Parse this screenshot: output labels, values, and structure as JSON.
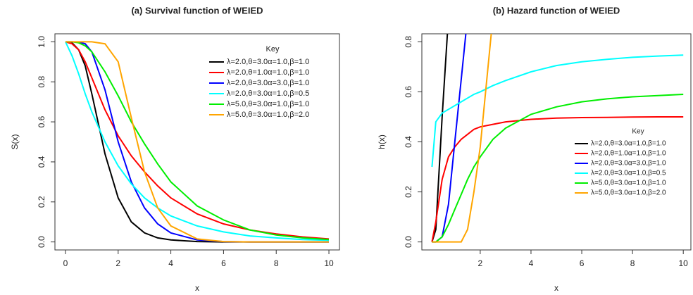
{
  "chart_data": [
    {
      "type": "line",
      "title": "(a) Survival function of WEIED",
      "x_label": "x",
      "y_label": "S(x)",
      "x": [
        0,
        0.25,
        0.5,
        0.75,
        1,
        1.5,
        2,
        2.5,
        3,
        3.5,
        4,
        5,
        6,
        7,
        8,
        9,
        10
      ],
      "xlim": [
        -0.4,
        10.4
      ],
      "xticks": [
        0,
        2,
        4,
        6,
        8,
        10
      ],
      "ylim": [
        -0.04,
        1.04
      ],
      "yticks": [
        {
          "value": 0,
          "label": "0.0"
        },
        {
          "value": 0.2,
          "label": "0.2"
        },
        {
          "value": 0.4,
          "label": "0.4"
        },
        {
          "value": 0.6,
          "label": "0.6"
        },
        {
          "value": 0.8,
          "label": "0.8"
        },
        {
          "value": 1,
          "label": "1.0"
        }
      ],
      "legend_title": "Key",
      "legend_position": "topright",
      "series": [
        {
          "name": "λ=2.0,θ=3.0α=1.0,β=1.0",
          "color": "#000000",
          "values": [
            1,
            0.995,
            0.96,
            0.88,
            0.74,
            0.44,
            0.22,
            0.1,
            0.045,
            0.02,
            0.01,
            0.002,
            0,
            0,
            0,
            0,
            0
          ]
        },
        {
          "name": "λ=2.0,θ=1.0α=1.0,β=1.0",
          "color": "#ff0000",
          "values": [
            1,
            0.99,
            0.96,
            0.9,
            0.82,
            0.66,
            0.53,
            0.43,
            0.35,
            0.28,
            0.22,
            0.14,
            0.09,
            0.06,
            0.04,
            0.025,
            0.015
          ]
        },
        {
          "name": "λ=2.0,θ=3.0α=3.0,β=1.0",
          "color": "#0000ff",
          "values": [
            1,
            1,
            0.998,
            0.99,
            0.95,
            0.76,
            0.5,
            0.3,
            0.17,
            0.09,
            0.045,
            0.01,
            0.002,
            0,
            0,
            0,
            0
          ]
        },
        {
          "name": "λ=2.0,θ=3.0α=1.0,β=0.5",
          "color": "#00ffff",
          "values": [
            1,
            0.93,
            0.84,
            0.74,
            0.65,
            0.5,
            0.38,
            0.29,
            0.22,
            0.17,
            0.13,
            0.08,
            0.05,
            0.03,
            0.02,
            0.012,
            0.008
          ]
        },
        {
          "name": "λ=5.0,θ=3.0α=1.0,β=1.0",
          "color": "#00ee00",
          "values": [
            1,
            1,
            0.995,
            0.98,
            0.95,
            0.85,
            0.73,
            0.6,
            0.49,
            0.39,
            0.3,
            0.18,
            0.11,
            0.06,
            0.035,
            0.02,
            0.012
          ]
        },
        {
          "name": "λ=5.0,θ=3.0α=1.0,β=2.0",
          "color": "#ffa500",
          "values": [
            1,
            1,
            1,
            1,
            1,
            0.99,
            0.9,
            0.62,
            0.35,
            0.17,
            0.08,
            0.015,
            0.002,
            0,
            0,
            0,
            0
          ]
        }
      ]
    },
    {
      "type": "line",
      "title": "(b) Hazard function of WEIED",
      "x_label": "x",
      "y_label": "h(x)",
      "x": [
        0.1,
        0.25,
        0.5,
        0.75,
        1,
        1.25,
        1.5,
        1.75,
        2,
        2.5,
        3,
        4,
        5,
        6,
        7,
        8,
        9,
        10
      ],
      "xlim": [
        -0.3,
        10.3
      ],
      "xticks": [
        2,
        4,
        6,
        8,
        10
      ],
      "ylim": [
        -0.032,
        0.832
      ],
      "yticks": [
        {
          "value": 0,
          "label": "0.0"
        },
        {
          "value": 0.2,
          "label": "0.2"
        },
        {
          "value": 0.4,
          "label": "0.4"
        },
        {
          "value": 0.6,
          "label": "0.6"
        },
        {
          "value": 0.8,
          "label": "0.8"
        }
      ],
      "legend_title": "Key",
      "legend_position": "right",
      "series": [
        {
          "name": "λ=2.0,θ=3.0α=1.0,β=1.0",
          "color": "#000000",
          "values": [
            0,
            0.05,
            0.5,
            0.9,
            null,
            null,
            null,
            null,
            null,
            null,
            null,
            null,
            null,
            null,
            null,
            null,
            null,
            null
          ]
        },
        {
          "name": "λ=2.0,θ=1.0α=1.0,β=1.0",
          "color": "#ff0000",
          "values": [
            0,
            0.08,
            0.25,
            0.34,
            0.38,
            0.41,
            0.43,
            0.45,
            0.46,
            0.47,
            0.48,
            0.49,
            0.495,
            0.497,
            0.498,
            0.499,
            0.5,
            0.5
          ]
        },
        {
          "name": "λ=2.0,θ=3.0α=3.0,β=1.0",
          "color": "#0000ff",
          "values": [
            0,
            0,
            0.02,
            0.15,
            0.4,
            0.65,
            0.9,
            null,
            null,
            null,
            null,
            null,
            null,
            null,
            null,
            null,
            null,
            null
          ]
        },
        {
          "name": "λ=2.0,θ=3.0α=1.0,β=0.5",
          "color": "#00ffff",
          "values": [
            0.3,
            0.48,
            0.515,
            0.53,
            0.545,
            0.56,
            0.575,
            0.59,
            0.6,
            0.625,
            0.645,
            0.68,
            0.705,
            0.72,
            0.73,
            0.738,
            0.743,
            0.747
          ]
        },
        {
          "name": "λ=5.0,θ=3.0α=1.0,β=1.0",
          "color": "#00ee00",
          "values": [
            0,
            0,
            0.02,
            0.07,
            0.13,
            0.19,
            0.25,
            0.3,
            0.34,
            0.41,
            0.455,
            0.51,
            0.54,
            0.56,
            0.572,
            0.58,
            0.585,
            0.59
          ]
        },
        {
          "name": "λ=5.0,θ=3.0α=1.0,β=2.0",
          "color": "#ffa500",
          "values": [
            0,
            0,
            0,
            0,
            0,
            0,
            0.05,
            0.2,
            0.38,
            0.9,
            null,
            null,
            null,
            null,
            null,
            null,
            null,
            null
          ]
        }
      ]
    }
  ]
}
